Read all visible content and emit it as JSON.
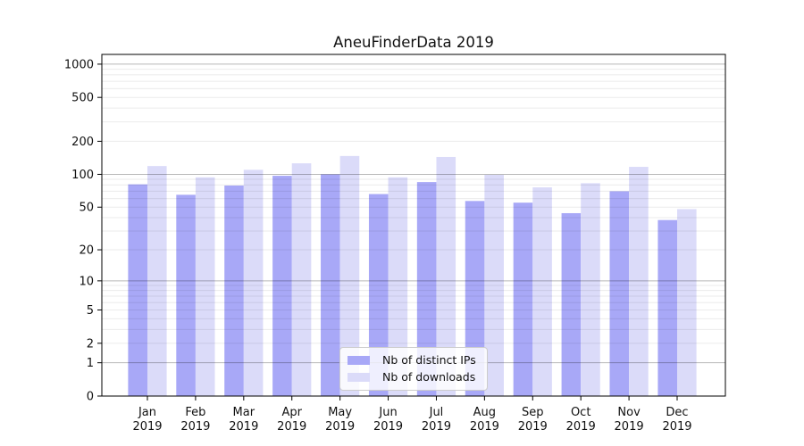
{
  "chart_data": {
    "type": "bar",
    "title": "AneuFinderData 2019",
    "categories": [
      "Jan",
      "Feb",
      "Mar",
      "Apr",
      "May",
      "Jun",
      "Jul",
      "Aug",
      "Sep",
      "Oct",
      "Nov",
      "Dec"
    ],
    "x_tick_year": "2019",
    "series": [
      {
        "name": "Nb of distinct IPs",
        "color": "#a8a8f7",
        "values": [
          81,
          65,
          79,
          97,
          100,
          66,
          85,
          57,
          55,
          44,
          70,
          38
        ]
      },
      {
        "name": "Nb of downloads",
        "color": "#dbdbf9",
        "values": [
          119,
          94,
          110,
          126,
          147,
          94,
          144,
          99,
          76,
          83,
          117,
          48
        ]
      }
    ],
    "yscale": "log1p",
    "ylim": [
      0,
      1225
    ],
    "y_ticks": [
      0,
      1,
      2,
      5,
      10,
      20,
      50,
      100,
      200,
      500,
      1000
    ],
    "grid": {
      "major_values": [
        1,
        10,
        100,
        1000
      ],
      "minor_values": [
        2,
        3,
        4,
        5,
        6,
        7,
        8,
        9,
        20,
        30,
        40,
        50,
        60,
        70,
        80,
        90,
        200,
        300,
        400,
        500,
        600,
        700,
        800,
        900
      ],
      "major_color": "rgba(0,0,0,0.28)",
      "minor_color": "rgba(0,0,0,0.08)"
    },
    "legend": {
      "position": "lower-center",
      "entries": [
        "Nb of distinct IPs",
        "Nb of downloads"
      ]
    },
    "axis_color": "#000000",
    "background_color": "#ffffff"
  }
}
